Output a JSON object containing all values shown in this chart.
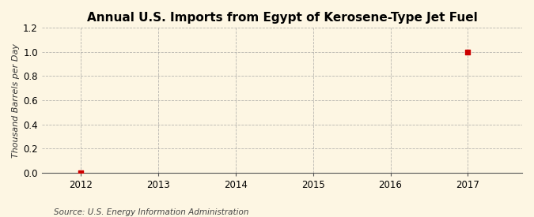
{
  "title": "Annual U.S. Imports from Egypt of Kerosene-Type Jet Fuel",
  "ylabel": "Thousand Barrels per Day",
  "source": "Source: U.S. Energy Information Administration",
  "x_data": [
    2012,
    2017
  ],
  "y_data": [
    0.0,
    1.0
  ],
  "xlim": [
    2011.5,
    2017.7
  ],
  "ylim": [
    0.0,
    1.2
  ],
  "xticks": [
    2012,
    2013,
    2014,
    2015,
    2016,
    2017
  ],
  "yticks": [
    0.0,
    0.2,
    0.4,
    0.6,
    0.8,
    1.0,
    1.2
  ],
  "marker_color": "#cc0000",
  "marker_style": "s",
  "marker_size": 5,
  "background_color": "#fdf6e3",
  "grid_color": "#999999",
  "title_fontsize": 11,
  "label_fontsize": 8,
  "tick_fontsize": 8.5,
  "source_fontsize": 7.5
}
